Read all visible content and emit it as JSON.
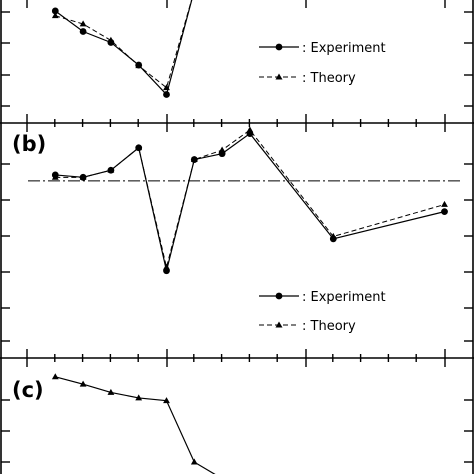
{
  "chart_data": [
    {
      "panel_label": "",
      "type": "line",
      "x": [
        1,
        2,
        3,
        4,
        5,
        6
      ],
      "xlim": [
        0,
        15.5
      ],
      "ylim": [
        0,
        14.6
      ],
      "ticks_shown": false,
      "legend_position": "right",
      "series": [
        {
          "name": "Experiment",
          "style": "solid",
          "marker": "circle",
          "color": "#000000",
          "values": [
            13.0,
            10.0,
            8.4,
            5.1,
            0.8,
            16.0
          ]
        },
        {
          "name": "Theory",
          "style": "dashed",
          "marker": "triangle",
          "color": "#000000",
          "values": [
            12.3,
            11.1,
            8.7,
            5.0,
            1.8,
            16.0
          ]
        }
      ]
    },
    {
      "panel_label": "(b)",
      "type": "line",
      "x": [
        1,
        2,
        3,
        4,
        5,
        6,
        7,
        8,
        9,
        10,
        11,
        12,
        13,
        14,
        15
      ],
      "xlim": [
        0,
        15.5
      ],
      "ylim": [
        0,
        15.3
      ],
      "ticks_shown": false,
      "legend_position": "bottom-right",
      "reference_line": {
        "style": "dash-dot",
        "value": 11.0
      },
      "series": [
        {
          "name": "Experiment",
          "style": "solid",
          "marker": "circle",
          "color": "#000000",
          "x": [
            1,
            2,
            3,
            4,
            5,
            6,
            7,
            8,
            11,
            15
          ],
          "values": [
            11.5,
            11.3,
            11.9,
            13.8,
            3.4,
            12.8,
            13.3,
            15.0,
            6.1,
            8.4
          ]
        },
        {
          "name": "Theory",
          "style": "dashed",
          "marker": "triangle",
          "color": "#000000",
          "x": [
            1,
            2,
            3,
            4,
            5,
            6,
            7,
            8,
            11,
            15
          ],
          "values": [
            11.3,
            11.3,
            11.9,
            13.8,
            3.7,
            12.8,
            13.6,
            15.3,
            6.3,
            9.0
          ]
        }
      ]
    },
    {
      "panel_label": "(c)",
      "type": "line",
      "x": [
        1,
        2,
        3,
        4,
        5,
        6,
        7
      ],
      "xlim": [
        0,
        15.5
      ],
      "ylim": [
        0,
        12
      ],
      "ticks_shown": false,
      "legend_position": "",
      "series": [
        {
          "name": "",
          "style": "solid",
          "marker": "triangle",
          "color": "#000000",
          "values": [
            10.6,
            9.8,
            8.9,
            8.3,
            8.0,
            1.3,
            -0.5
          ]
        }
      ]
    }
  ],
  "panel_labels": {
    "b": "(b)",
    "c": "(c)"
  },
  "legend": {
    "top": {
      "experiment": ": Experiment",
      "theory": ": Theory"
    },
    "middle": {
      "experiment": ": Experiment",
      "theory": ": Theory"
    }
  }
}
